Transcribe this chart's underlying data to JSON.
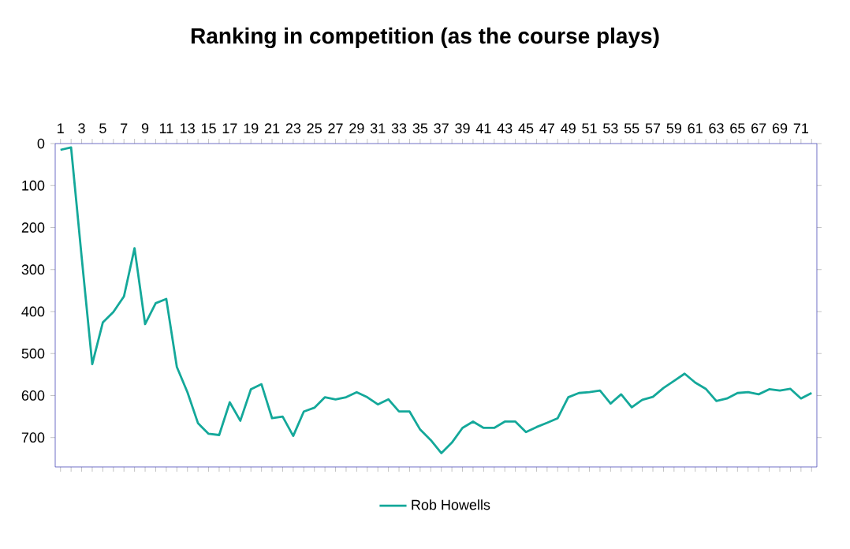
{
  "chart_data": {
    "type": "line",
    "title": "Ranking in competition (as the course plays)",
    "categories": [
      "1",
      null,
      "3",
      null,
      "5",
      null,
      "7",
      null,
      "9",
      null,
      "11",
      null,
      "13",
      null,
      "15",
      null,
      "17",
      null,
      "19",
      null,
      "21",
      null,
      "23",
      null,
      "25",
      null,
      "27",
      null,
      "29",
      null,
      "31",
      null,
      "33",
      null,
      "35",
      null,
      "37",
      null,
      "39",
      null,
      "41",
      null,
      "43",
      null,
      "45",
      null,
      "47",
      null,
      "49",
      null,
      "51",
      null,
      "53",
      null,
      "55",
      null,
      "57",
      null,
      "59",
      null,
      "61",
      null,
      "63",
      null,
      "65",
      null,
      "67",
      null,
      "69",
      null,
      "71",
      null
    ],
    "series": [
      {
        "name": "Rob Howells",
        "color": "#14a89a",
        "values": [
          15,
          9,
          270,
          525,
          426,
          401,
          364,
          249,
          430,
          380,
          370,
          532,
          592,
          666,
          691,
          694,
          616,
          660,
          585,
          573,
          654,
          650,
          696,
          638,
          629,
          604,
          609,
          604,
          592,
          604,
          621,
          609,
          638,
          638,
          681,
          706,
          737,
          712,
          677,
          662,
          677,
          677,
          662,
          662,
          687,
          675,
          665,
          654,
          604,
          594,
          592,
          588,
          619,
          597,
          628,
          610,
          603,
          582,
          565,
          548,
          569,
          584,
          613,
          607,
          594,
          592,
          597,
          585,
          588,
          584,
          607,
          594
        ]
      }
    ],
    "ylim": [
      770,
      0
    ],
    "yticks": [
      0,
      100,
      200,
      300,
      400,
      500,
      600,
      700
    ],
    "legend": "bottom",
    "marker": "none",
    "line_style": "solid",
    "grid": false
  }
}
